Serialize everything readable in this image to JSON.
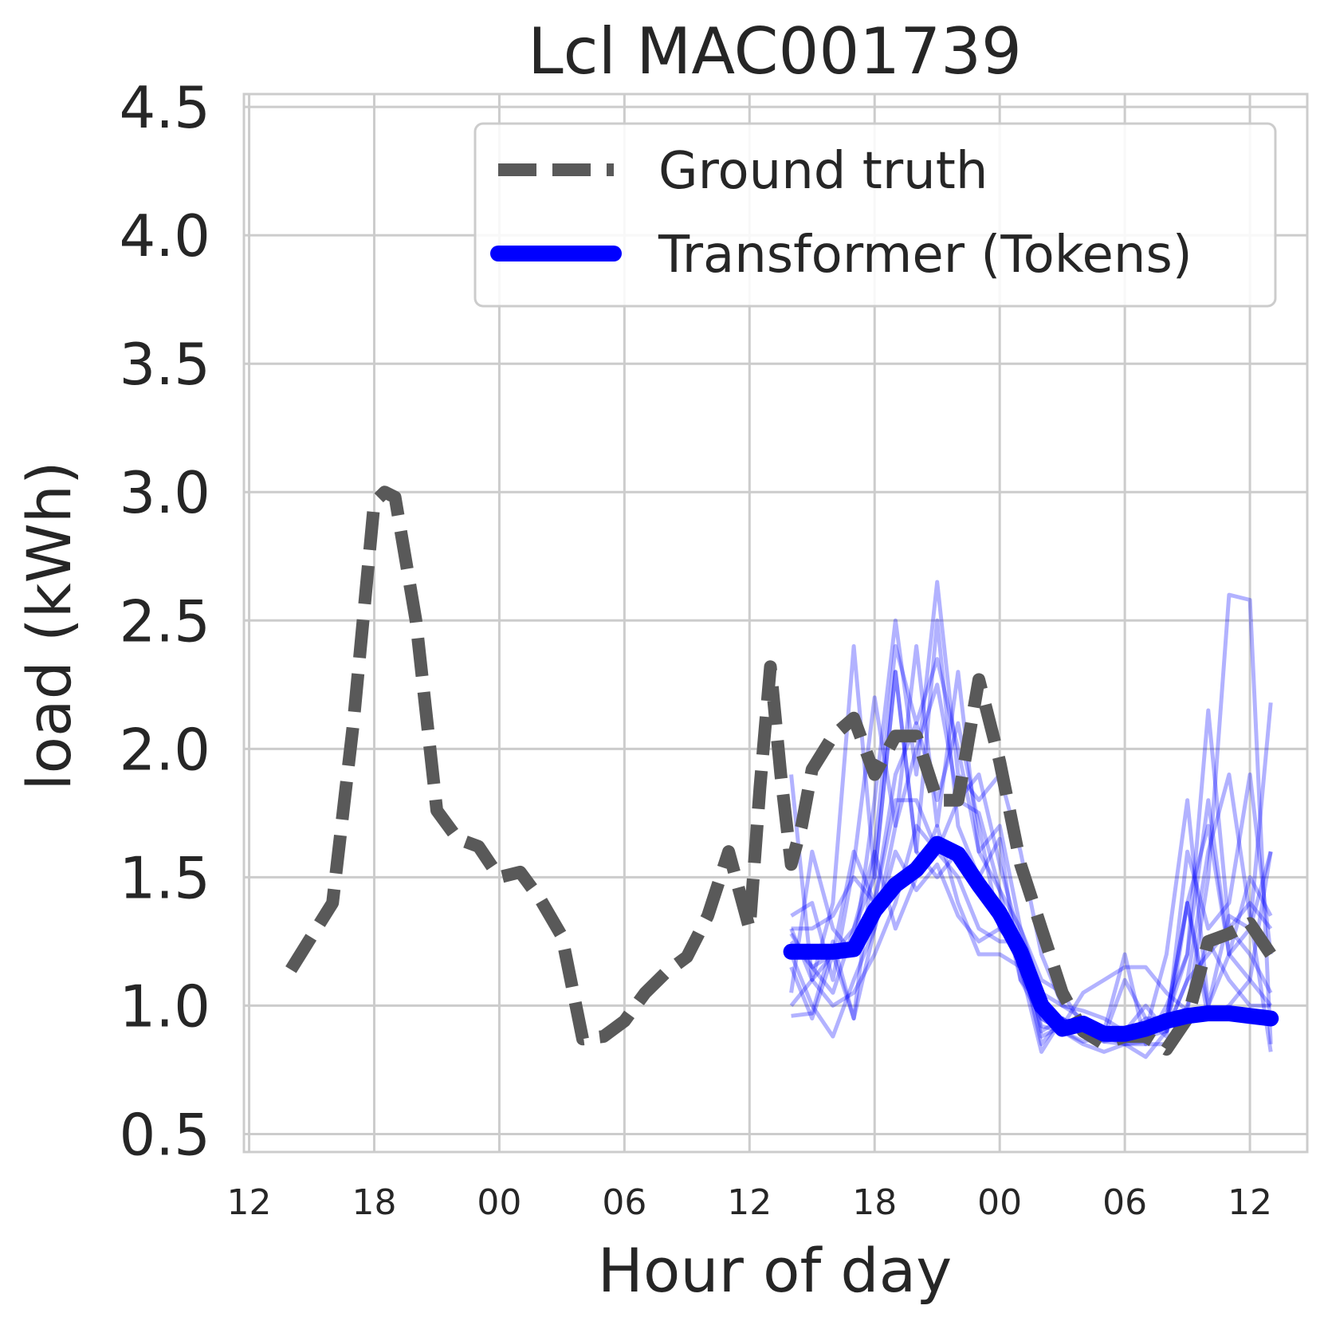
{
  "chart_data": {
    "type": "line",
    "title": "Lcl MAC001739",
    "xlabel": "Hour of day",
    "ylabel": "load (kWh)",
    "x_unit": "hours",
    "xlim": [
      -0.25,
      50.75
    ],
    "ylim": [
      0.43,
      4.55
    ],
    "x_ticks": [
      {
        "value": 0,
        "label": "12"
      },
      {
        "value": 6,
        "label": "18"
      },
      {
        "value": 12,
        "label": "00"
      },
      {
        "value": 18,
        "label": "06"
      },
      {
        "value": 24,
        "label": "12"
      },
      {
        "value": 30,
        "label": "18"
      },
      {
        "value": 36,
        "label": "00"
      },
      {
        "value": 42,
        "label": "06"
      },
      {
        "value": 48,
        "label": "12"
      }
    ],
    "y_ticks": [
      {
        "value": 0.5,
        "label": "0.5"
      },
      {
        "value": 1.0,
        "label": "1.0"
      },
      {
        "value": 1.5,
        "label": "1.5"
      },
      {
        "value": 2.0,
        "label": "2.0"
      },
      {
        "value": 2.5,
        "label": "2.5"
      },
      {
        "value": 3.0,
        "label": "3.0"
      },
      {
        "value": 3.5,
        "label": "3.5"
      },
      {
        "value": 4.0,
        "label": "4.0"
      },
      {
        "value": 4.5,
        "label": "4.5"
      }
    ],
    "grid": true,
    "legend_position": "top-right",
    "series": [
      {
        "name": "Ground truth",
        "style": "dashed",
        "color": "#595959",
        "x": [
          2,
          3,
          4,
          5,
          6,
          6.5,
          7,
          8,
          9,
          10,
          11,
          12,
          13,
          14,
          15,
          16,
          17,
          18,
          19,
          20,
          21,
          22,
          23,
          24,
          24.5,
          25,
          25.5,
          26,
          26.5,
          27,
          28,
          29,
          30,
          31,
          32,
          33,
          34,
          35,
          36,
          37,
          38,
          39,
          40,
          41,
          42,
          43,
          44,
          45,
          46,
          47,
          48,
          49
        ],
        "y": [
          1.14,
          1.27,
          1.4,
          2.1,
          2.96,
          3.0,
          2.98,
          2.5,
          1.76,
          1.65,
          1.62,
          1.5,
          1.52,
          1.41,
          1.27,
          0.87,
          0.88,
          0.94,
          1.05,
          1.13,
          1.19,
          1.35,
          1.6,
          1.3,
          1.85,
          2.32,
          1.9,
          1.55,
          1.7,
          1.92,
          2.05,
          2.12,
          1.9,
          2.05,
          2.05,
          1.8,
          1.8,
          2.27,
          1.95,
          1.55,
          1.3,
          1.05,
          0.9,
          0.85,
          0.88,
          0.88,
          0.83,
          0.95,
          1.25,
          1.28,
          1.32,
          1.2
        ]
      },
      {
        "name": "Transformer (Tokens)",
        "style": "solid",
        "color": "#0000ff",
        "x": [
          26,
          27,
          28,
          29,
          30,
          31,
          32,
          33,
          34,
          35,
          36,
          37,
          38,
          39,
          40,
          41,
          42,
          43,
          44,
          45,
          46,
          47,
          48,
          49
        ],
        "y": [
          1.21,
          1.21,
          1.21,
          1.22,
          1.37,
          1.47,
          1.53,
          1.63,
          1.59,
          1.47,
          1.36,
          1.21,
          1.0,
          0.91,
          0.93,
          0.89,
          0.89,
          0.91,
          0.94,
          0.96,
          0.97,
          0.97,
          0.96,
          0.95
        ]
      }
    ],
    "samples": {
      "color": "#0000ff",
      "opacity": 0.3,
      "x": [
        26,
        27,
        28,
        29,
        30,
        31,
        32,
        33,
        34,
        35,
        36,
        37,
        38,
        39,
        40,
        41,
        42,
        43,
        44,
        45,
        46,
        47,
        48,
        49
      ],
      "lines": [
        [
          1.9,
          1.1,
          1.4,
          2.4,
          1.5,
          2.3,
          1.6,
          2.5,
          1.7,
          1.5,
          1.4,
          1.2,
          0.85,
          0.95,
          0.9,
          0.9,
          0.9,
          0.9,
          0.95,
          1.2,
          1.8,
          1.2,
          1.1,
          1.0
        ],
        [
          1.05,
          1.6,
          1.3,
          1.2,
          1.8,
          2.5,
          1.9,
          2.65,
          1.9,
          1.8,
          1.9,
          1.6,
          1.2,
          1.0,
          0.95,
          0.9,
          1.2,
          0.85,
          1.0,
          1.2,
          2.15,
          1.3,
          1.2,
          1.05
        ],
        [
          1.35,
          1.4,
          1.1,
          1.55,
          2.2,
          1.7,
          2.4,
          1.7,
          2.3,
          1.6,
          1.7,
          1.3,
          1.05,
          1.0,
          0.98,
          0.95,
          0.9,
          1.0,
          0.9,
          1.6,
          1.3,
          1.4,
          1.9,
          1.2
        ],
        [
          0.96,
          0.97,
          1.25,
          0.95,
          1.3,
          1.7,
          2.0,
          2.25,
          1.8,
          1.9,
          1.55,
          1.25,
          0.95,
          0.9,
          0.86,
          0.88,
          1.1,
          0.95,
          0.95,
          1.4,
          1.7,
          1.2,
          1.5,
          1.35
        ],
        [
          1.15,
          0.95,
          1.2,
          1.6,
          1.4,
          1.9,
          2.1,
          1.8,
          2.1,
          1.7,
          1.3,
          1.2,
          0.88,
          0.92,
          0.95,
          0.88,
          0.87,
          0.9,
          1.2,
          1.8,
          1.0,
          1.35,
          1.3,
          1.6
        ],
        [
          1.25,
          1.15,
          1.05,
          1.3,
          1.5,
          2.3,
          1.6,
          1.5,
          1.6,
          1.5,
          1.65,
          1.1,
          1.0,
          0.92,
          1.05,
          1.1,
          1.15,
          1.15,
          1.05,
          0.98,
          1.5,
          2.6,
          2.58,
          0.85
        ],
        [
          1.3,
          1.3,
          1.35,
          1.5,
          1.4,
          1.8,
          1.8,
          1.6,
          1.5,
          1.3,
          1.25,
          1.25,
          0.9,
          0.95,
          0.88,
          0.88,
          0.85,
          0.86,
          0.95,
          1.4,
          0.95,
          1.0,
          1.1,
          1.6
        ],
        [
          1.28,
          1.15,
          1.2,
          0.95,
          1.6,
          1.3,
          1.5,
          1.7,
          1.4,
          1.2,
          1.2,
          1.15,
          0.82,
          0.95,
          0.9,
          0.86,
          0.85,
          0.85,
          0.85,
          1.0,
          1.25,
          1.1,
          1.0,
          1.0
        ],
        [
          1.0,
          1.1,
          1.0,
          1.05,
          1.2,
          1.4,
          1.7,
          1.6,
          1.8,
          1.75,
          1.45,
          1.3,
          1.1,
          1.05,
          0.92,
          0.86,
          0.88,
          0.95,
          0.88,
          1.4,
          1.0,
          1.2,
          1.3,
          2.18
        ],
        [
          1.2,
          1.0,
          0.88,
          1.1,
          1.3,
          1.6,
          1.45,
          1.55,
          1.35,
          1.25,
          1.3,
          1.2,
          0.92,
          0.9,
          0.85,
          0.82,
          0.85,
          0.8,
          0.9,
          1.1,
          1.2,
          1.3,
          1.4,
          1.3
        ],
        [
          1.3,
          1.1,
          1.2,
          1.3,
          1.6,
          2.4,
          2.1,
          2.35,
          2.0,
          1.6,
          1.45,
          1.1,
          0.95,
          0.9,
          0.92,
          0.87,
          0.88,
          0.88,
          0.9,
          1.1,
          1.6,
          1.9,
          1.35,
          0.82
        ]
      ]
    }
  }
}
